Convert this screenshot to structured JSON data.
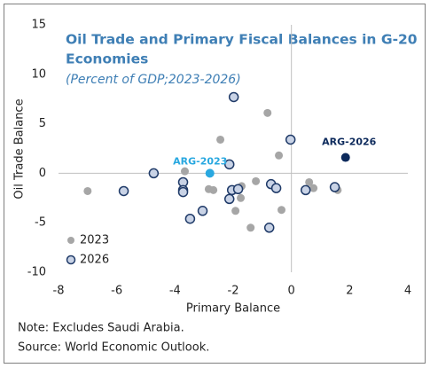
{
  "chart_data": {
    "type": "scatter",
    "title": "Oil Trade and Primary Fiscal Balances in G-20",
    "title_line2": "Economies",
    "subtitle": "(Percent of GDP;2023-2026)",
    "x_label": "Primary Balance",
    "y_label": "Oil Trade Balance",
    "xlim": [
      -8,
      4
    ],
    "xticks": [
      -8,
      -6,
      -4,
      -2,
      0,
      2,
      4
    ],
    "ylim": [
      -10,
      15
    ],
    "yticks": [
      -10,
      -5,
      0,
      5,
      10,
      15
    ],
    "legend": "lower left",
    "series": [
      {
        "name": "2023",
        "color": "#a6a6a6",
        "x": [
          -7.0,
          -3.66,
          -2.44,
          -2.84,
          -2.68,
          -1.92,
          -1.74,
          -1.71,
          -1.22,
          -1.4,
          -0.82,
          -0.43,
          -0.34,
          0.61,
          0.76,
          1.59
        ],
        "y": [
          -1.8,
          0.2,
          3.4,
          -1.6,
          -1.7,
          -3.8,
          -2.5,
          -1.3,
          -0.8,
          -5.5,
          6.1,
          1.8,
          -3.7,
          -0.9,
          -1.5,
          -1.7
        ]
      },
      {
        "name": "2026",
        "color": "#1f3a68",
        "x": [
          -5.76,
          -4.73,
          -3.72,
          -3.72,
          -3.72,
          -3.48,
          -3.05,
          -2.13,
          -1.98,
          -2.13,
          -2.04,
          -1.83,
          -0.7,
          -0.52,
          -0.76,
          -0.03,
          0.49,
          1.49
        ],
        "y": [
          -1.8,
          0.0,
          -0.9,
          -1.7,
          -1.9,
          -4.6,
          -3.8,
          0.9,
          7.7,
          -2.6,
          -1.7,
          -1.6,
          -1.1,
          -1.5,
          -5.5,
          3.4,
          -1.7,
          -1.4
        ]
      }
    ],
    "annotations": [
      {
        "text": "ARG-2023",
        "x": -2.8,
        "y": 0.0,
        "color": "#29a8e0"
      },
      {
        "text": "ARG-2026",
        "x": 1.86,
        "y": 1.6,
        "color": "#0d2a5c"
      }
    ],
    "notes": [
      "Note: Excludes Saudi Arabia.",
      "Source:  World Economic Outlook."
    ]
  }
}
